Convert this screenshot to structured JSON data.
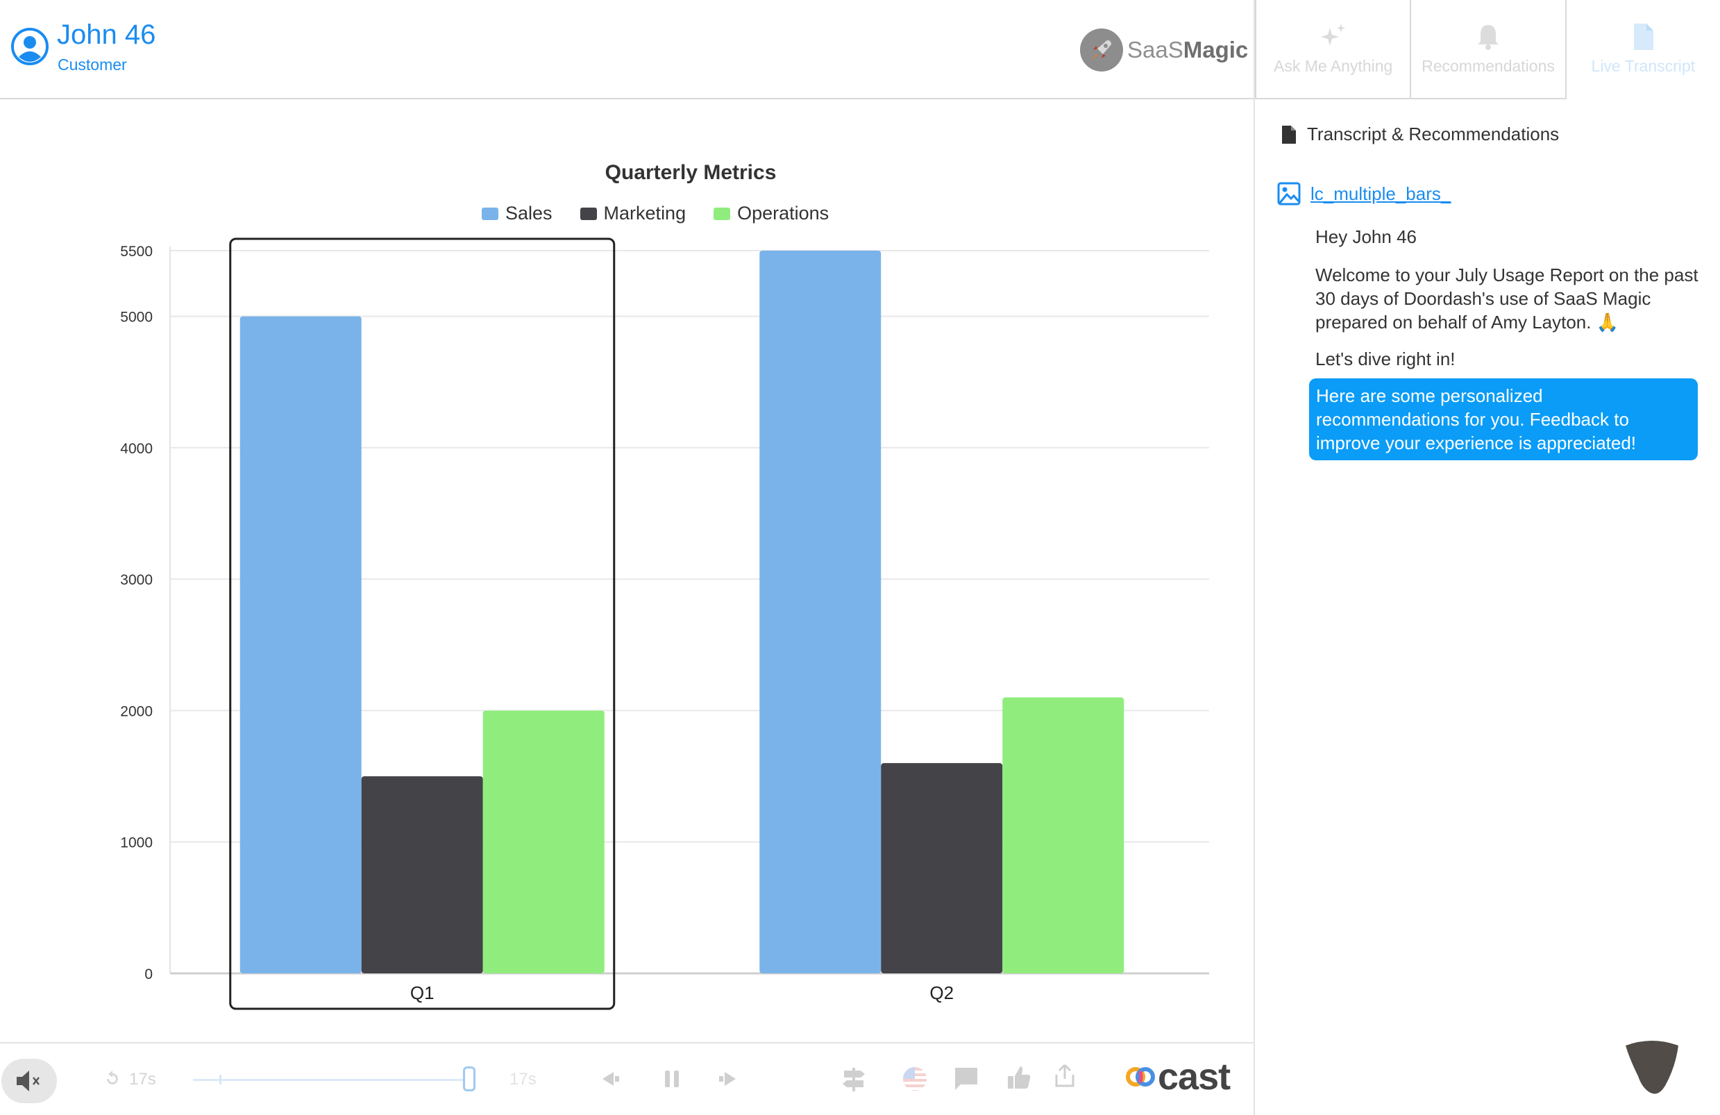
{
  "header": {
    "user_name": "John 46",
    "user_role": "Customer",
    "brand_prefix": "SaaS",
    "brand_suffix": "Magic"
  },
  "tabs": [
    {
      "label": "Ask Me Anything",
      "icon": "sparkle-icon"
    },
    {
      "label": "Recommendations",
      "icon": "bell-icon"
    },
    {
      "label": "Live Transcript",
      "icon": "document-icon",
      "active": true
    }
  ],
  "chart_data": {
    "type": "bar",
    "title": "Quarterly Metrics",
    "categories": [
      "Q1",
      "Q2"
    ],
    "series": [
      {
        "name": "Sales",
        "values": [
          5000,
          5500
        ],
        "color": "#7ab3ea"
      },
      {
        "name": "Marketing",
        "values": [
          1500,
          1600
        ],
        "color": "#434348"
      },
      {
        "name": "Operations",
        "values": [
          2000,
          2100
        ],
        "color": "#90ed7d"
      }
    ],
    "ylim": [
      0,
      5500
    ],
    "yticks": [
      0,
      1000,
      2000,
      3000,
      4000,
      5000,
      5500
    ],
    "grid": true,
    "legend": "top",
    "highlighted_category": "Q1"
  },
  "bottom": {
    "replay_label": "17s",
    "duration_label": "17s",
    "slider_fraction": 1.0,
    "brand": "cast"
  },
  "panel": {
    "heading": "Transcript & Recommendations",
    "link_text": "lc_multiple_bars_",
    "greeting": "Hey John 46",
    "welcome": "Welcome to your July Usage Report on the past 30 days of Doordash's use of SaaS Magic prepared on behalf of Amy Layton. 🙏",
    "dive": "Let's dive right in!",
    "bubble": "Here are some personalized recommendations for you. Feedback to improve your experience is appreciated!"
  }
}
